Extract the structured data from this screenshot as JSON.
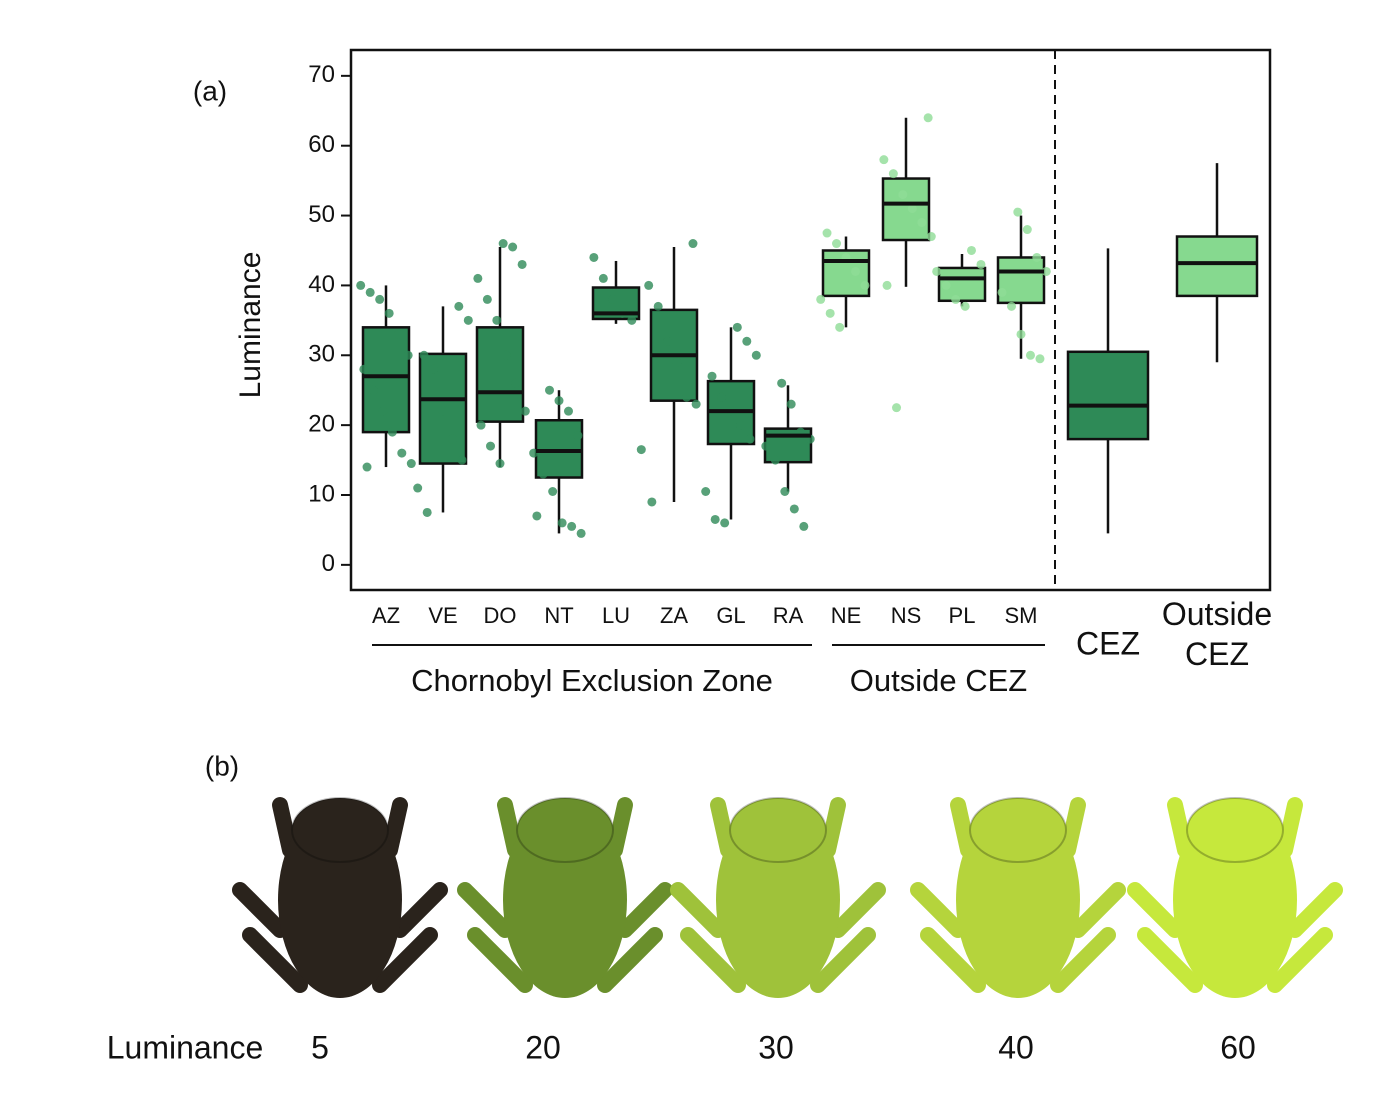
{
  "chart_data": {
    "type": "box",
    "panel_label": "(a)",
    "y_label": "Luminance",
    "ylim": [
      -3.6,
      73.7
    ],
    "yticks": [
      0,
      10,
      20,
      30,
      40,
      50,
      60,
      70
    ],
    "categories": [
      "AZ",
      "VE",
      "DO",
      "NT",
      "LU",
      "ZA",
      "GL",
      "RA",
      "NE",
      "NS",
      "PL",
      "SM",
      "CEZ",
      "Outside CEZ"
    ],
    "colors": [
      "#2e8a57",
      "#2e8a57",
      "#2e8a57",
      "#2e8a57",
      "#2e8a57",
      "#2e8a57",
      "#2e8a57",
      "#2e8a57",
      "#86d98f",
      "#86d98f",
      "#86d98f",
      "#86d98f",
      "#2e8a57",
      "#86d98f"
    ],
    "point_colors": [
      "#2e8a57",
      "#2e8a57",
      "#2e8a57",
      "#2e8a57",
      "#2e8a57",
      "#2e8a57",
      "#2e8a57",
      "#2e8a57",
      "#8fdc96",
      "#8fdc96",
      "#8fdc96",
      "#8fdc96"
    ],
    "boxes": [
      {
        "whislo": 14,
        "q1": 19,
        "med": 27,
        "q3": 34,
        "whishi": 40,
        "points": [
          40,
          39,
          38,
          36,
          33,
          30,
          28,
          25,
          22,
          19,
          16,
          14.5,
          14
        ]
      },
      {
        "whislo": 7.5,
        "q1": 14.5,
        "med": 23.7,
        "q3": 30.2,
        "whishi": 37,
        "points": [
          37,
          35,
          30,
          28,
          22,
          18,
          15,
          11,
          7.5
        ]
      },
      {
        "whislo": 14,
        "q1": 20.5,
        "med": 24.7,
        "q3": 34,
        "whishi": 45.5,
        "points": [
          46,
          45.5,
          43,
          41,
          38,
          35,
          30,
          26,
          22,
          20,
          17,
          14.5
        ]
      },
      {
        "whislo": 4.5,
        "q1": 12.5,
        "med": 16.3,
        "q3": 20.7,
        "whishi": 25,
        "points": [
          25,
          23.5,
          22,
          18.5,
          16,
          13,
          10.5,
          6,
          5.5,
          4.5,
          7
        ]
      },
      {
        "whislo": 34.5,
        "q1": 35.2,
        "med": 36,
        "q3": 39.7,
        "whishi": 43.5,
        "points": [
          44,
          41,
          38,
          36,
          35,
          16.5
        ]
      },
      {
        "whislo": 9,
        "q1": 23.5,
        "med": 30,
        "q3": 36.5,
        "whishi": 45.5,
        "points": [
          46,
          40,
          37,
          32,
          29,
          24,
          23,
          9
        ]
      },
      {
        "whislo": 6.5,
        "q1": 17.3,
        "med": 22,
        "q3": 26.3,
        "whishi": 34,
        "points": [
          34,
          32,
          30,
          27,
          24,
          22,
          20,
          18,
          10.5,
          6.5,
          6
        ]
      },
      {
        "whislo": 10.5,
        "q1": 14.7,
        "med": 18.5,
        "q3": 19.5,
        "whishi": 25.7,
        "points": [
          26,
          23,
          19,
          18,
          17,
          15,
          10.5,
          8,
          5.5
        ]
      },
      {
        "whislo": 34,
        "q1": 38.5,
        "med": 43.5,
        "q3": 45,
        "whishi": 47,
        "points": [
          47.5,
          46,
          44,
          42,
          40,
          38,
          36,
          34
        ]
      },
      {
        "whislo": 39.8,
        "q1": 46.5,
        "med": 51.7,
        "q3": 55.3,
        "whishi": 64,
        "points": [
          64,
          58,
          56,
          53,
          51,
          49,
          47,
          40,
          22.5
        ]
      },
      {
        "whislo": 37,
        "q1": 37.8,
        "med": 41,
        "q3": 42.5,
        "whishi": 44.5,
        "points": [
          45,
          43,
          42,
          40,
          38,
          37
        ]
      },
      {
        "whislo": 29.5,
        "q1": 37.5,
        "med": 42,
        "q3": 44,
        "whishi": 50,
        "points": [
          50.5,
          48,
          44,
          42,
          39,
          37,
          33,
          30,
          29.5
        ]
      },
      {
        "whislo": 4.5,
        "q1": 18,
        "med": 22.8,
        "q3": 30.5,
        "whishi": 45.3
      },
      {
        "whislo": 29,
        "q1": 38.5,
        "med": 43.2,
        "q3": 47,
        "whishi": 57.5
      }
    ],
    "groups": [
      {
        "label": "Chornobyl Exclusion Zone",
        "count": 8
      },
      {
        "label": "Outside CEZ",
        "count": 4
      }
    ]
  },
  "panel_b": {
    "panel_label": "(b)",
    "axis_label": "Luminance",
    "values": [
      5,
      20,
      30,
      40,
      60
    ],
    "colors": [
      "#2a231c",
      "#6a8f2c",
      "#9fc23a",
      "#b5d43c",
      "#c6e83c"
    ]
  }
}
